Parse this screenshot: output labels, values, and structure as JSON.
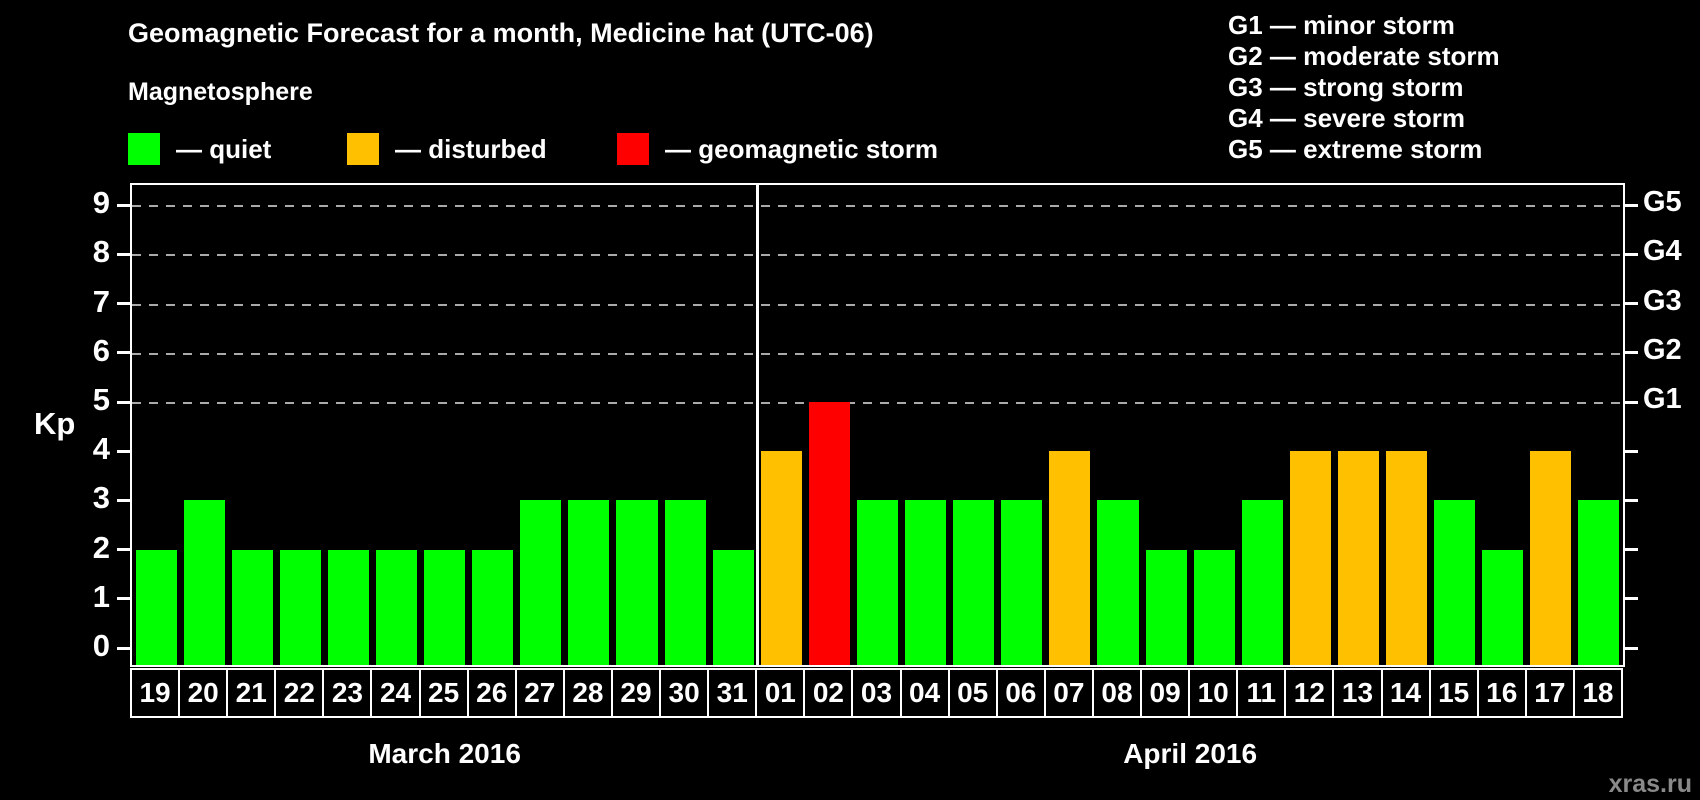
{
  "title": "Geomagnetic Forecast for a month, Medicine hat (UTC-06)",
  "magnetosphere_label": "Magnetosphere",
  "legend": [
    {
      "name": "quiet",
      "label": "— quiet",
      "color": "#00ff00"
    },
    {
      "name": "disturbed",
      "label": "— disturbed",
      "color": "#ffc000"
    },
    {
      "name": "geomagnetic storm",
      "label": "— geomagnetic storm",
      "color": "#ff0000"
    }
  ],
  "g_legend": [
    "G1 — minor storm",
    "G2 — moderate storm",
    "G3 — strong storm",
    "G4 — severe storm",
    "G5 — extreme storm"
  ],
  "axis": {
    "kp_label": "Kp",
    "kp_ticks": [
      "0",
      "1",
      "2",
      "3",
      "4",
      "5",
      "6",
      "7",
      "8",
      "9"
    ],
    "g_labels": [
      "G1",
      "G2",
      "G3",
      "G4",
      "G5"
    ]
  },
  "watermark": "xras.ru",
  "chart_data": {
    "type": "bar",
    "title": "Geomagnetic Forecast for a month, Medicine hat (UTC-06)",
    "ylabel": "Kp",
    "ylim": [
      0,
      9
    ],
    "grid_levels": [
      5,
      6,
      7,
      8,
      9
    ],
    "right_axis_labels": {
      "5": "G1",
      "6": "G2",
      "7": "G3",
      "8": "G4",
      "9": "G5"
    },
    "status_colors": {
      "quiet": "#00ff00",
      "disturbed": "#ffc000",
      "storm": "#ff0000"
    },
    "legend_note": "green quiet, orange disturbed, red geomagnetic storm",
    "months": [
      {
        "label": "March 2016",
        "days": [
          "19",
          "20",
          "21",
          "22",
          "23",
          "24",
          "25",
          "26",
          "27",
          "28",
          "29",
          "30",
          "31"
        ],
        "values": [
          2,
          3,
          2,
          2,
          2,
          2,
          2,
          2,
          3,
          3,
          3,
          3,
          2
        ],
        "statuses": [
          "quiet",
          "quiet",
          "quiet",
          "quiet",
          "quiet",
          "quiet",
          "quiet",
          "quiet",
          "quiet",
          "quiet",
          "quiet",
          "quiet",
          "quiet"
        ]
      },
      {
        "label": "April 2016",
        "days": [
          "01",
          "02",
          "03",
          "04",
          "05",
          "06",
          "07",
          "08",
          "09",
          "10",
          "11",
          "12",
          "13",
          "14",
          "15",
          "16",
          "17",
          "18"
        ],
        "values": [
          4,
          5,
          3,
          3,
          3,
          3,
          4,
          3,
          2,
          2,
          3,
          4,
          4,
          4,
          3,
          2,
          4,
          3
        ],
        "statuses": [
          "disturbed",
          "storm",
          "quiet",
          "quiet",
          "quiet",
          "quiet",
          "disturbed",
          "quiet",
          "quiet",
          "quiet",
          "quiet",
          "disturbed",
          "disturbed",
          "disturbed",
          "quiet",
          "quiet",
          "disturbed",
          "quiet"
        ]
      }
    ]
  }
}
